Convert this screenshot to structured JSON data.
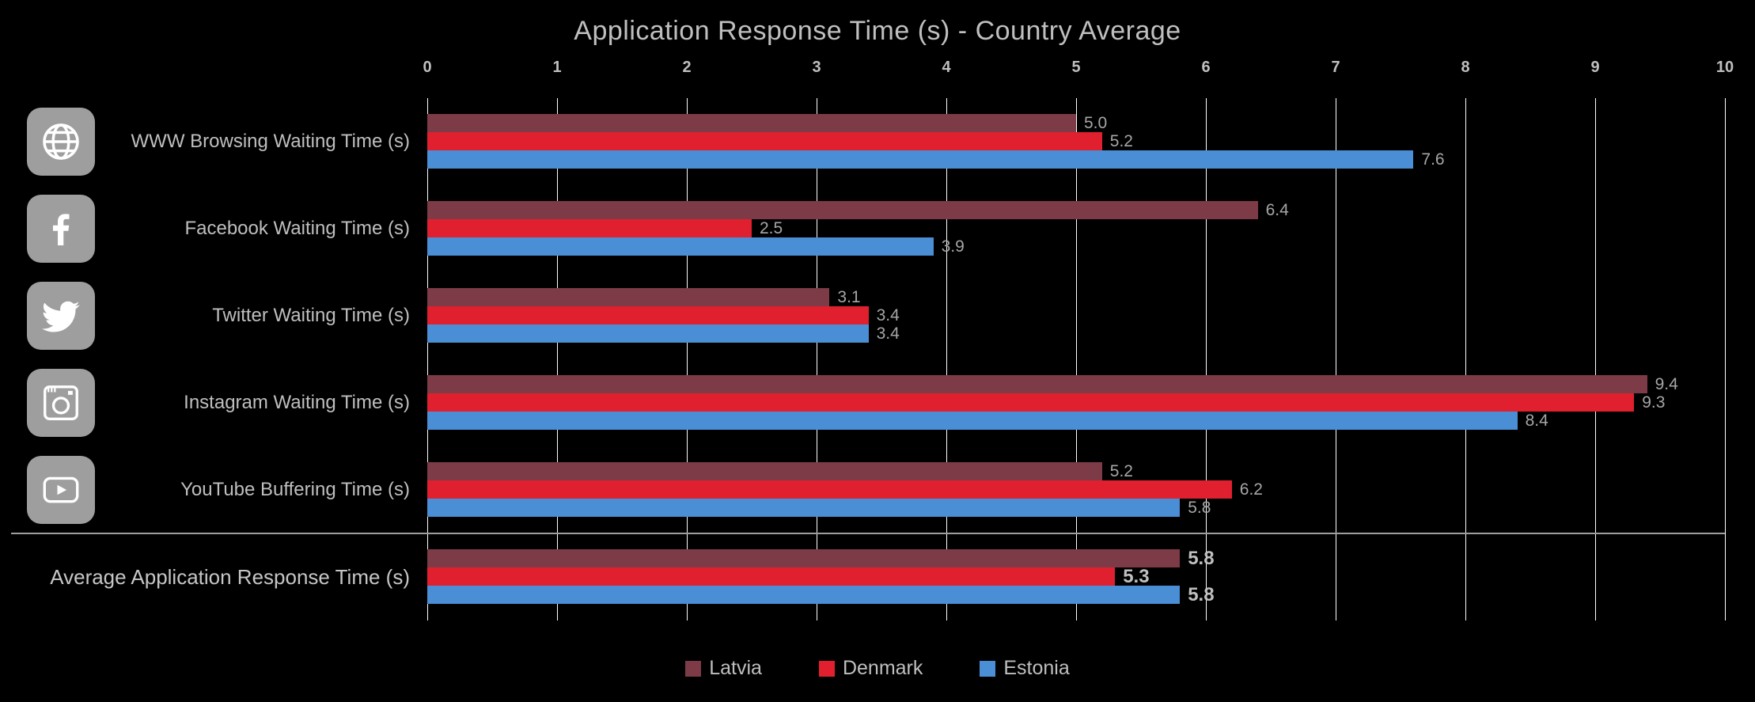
{
  "title": "Application Response Time (s) - Country Average",
  "colors": {
    "background": "#000000",
    "text": "#BFBFBF",
    "value_text": "#A6A6A6",
    "grid": "#FFFFFF",
    "icon_background": "#9E9E9E",
    "separator": "#9E9E9E",
    "latvia": "#7C3B46",
    "denmark": "#E0202F",
    "estonia": "#4A8ED6"
  },
  "icons": [
    {
      "name": "globe-icon",
      "category": "WWW Browsing Waiting Time (s)"
    },
    {
      "name": "facebook-icon",
      "category": "Facebook Waiting Time (s)"
    },
    {
      "name": "twitter-icon",
      "category": "Twitter Waiting Time (s)"
    },
    {
      "name": "instagram-icon",
      "category": "Instagram Waiting Time (s)"
    },
    {
      "name": "youtube-icon",
      "category": "YouTube Buffering Time (s)"
    }
  ],
  "chart_data": {
    "type": "bar",
    "orientation": "horizontal",
    "title": "Application Response Time (s) - Country Average",
    "categories": [
      "WWW Browsing Waiting Time (s)",
      "Facebook Waiting Time (s)",
      "Twitter Waiting Time (s)",
      "Instagram Waiting Time (s)",
      "YouTube Buffering Time (s)",
      "Average Application Response Time (s)"
    ],
    "series": [
      {
        "name": "Latvia",
        "color": "#7C3B46",
        "values": [
          5.0,
          6.4,
          3.1,
          9.4,
          5.2,
          5.8
        ]
      },
      {
        "name": "Denmark",
        "color": "#E0202F",
        "values": [
          5.2,
          2.5,
          3.4,
          9.3,
          6.2,
          5.3
        ]
      },
      {
        "name": "Estonia",
        "color": "#4A8ED6",
        "values": [
          7.6,
          3.9,
          3.4,
          8.4,
          5.8,
          5.8
        ]
      }
    ],
    "xlim": [
      0,
      10
    ],
    "tick_step": 1,
    "grid": true,
    "legend_position": "bottom",
    "value_label_decimals": 1
  }
}
